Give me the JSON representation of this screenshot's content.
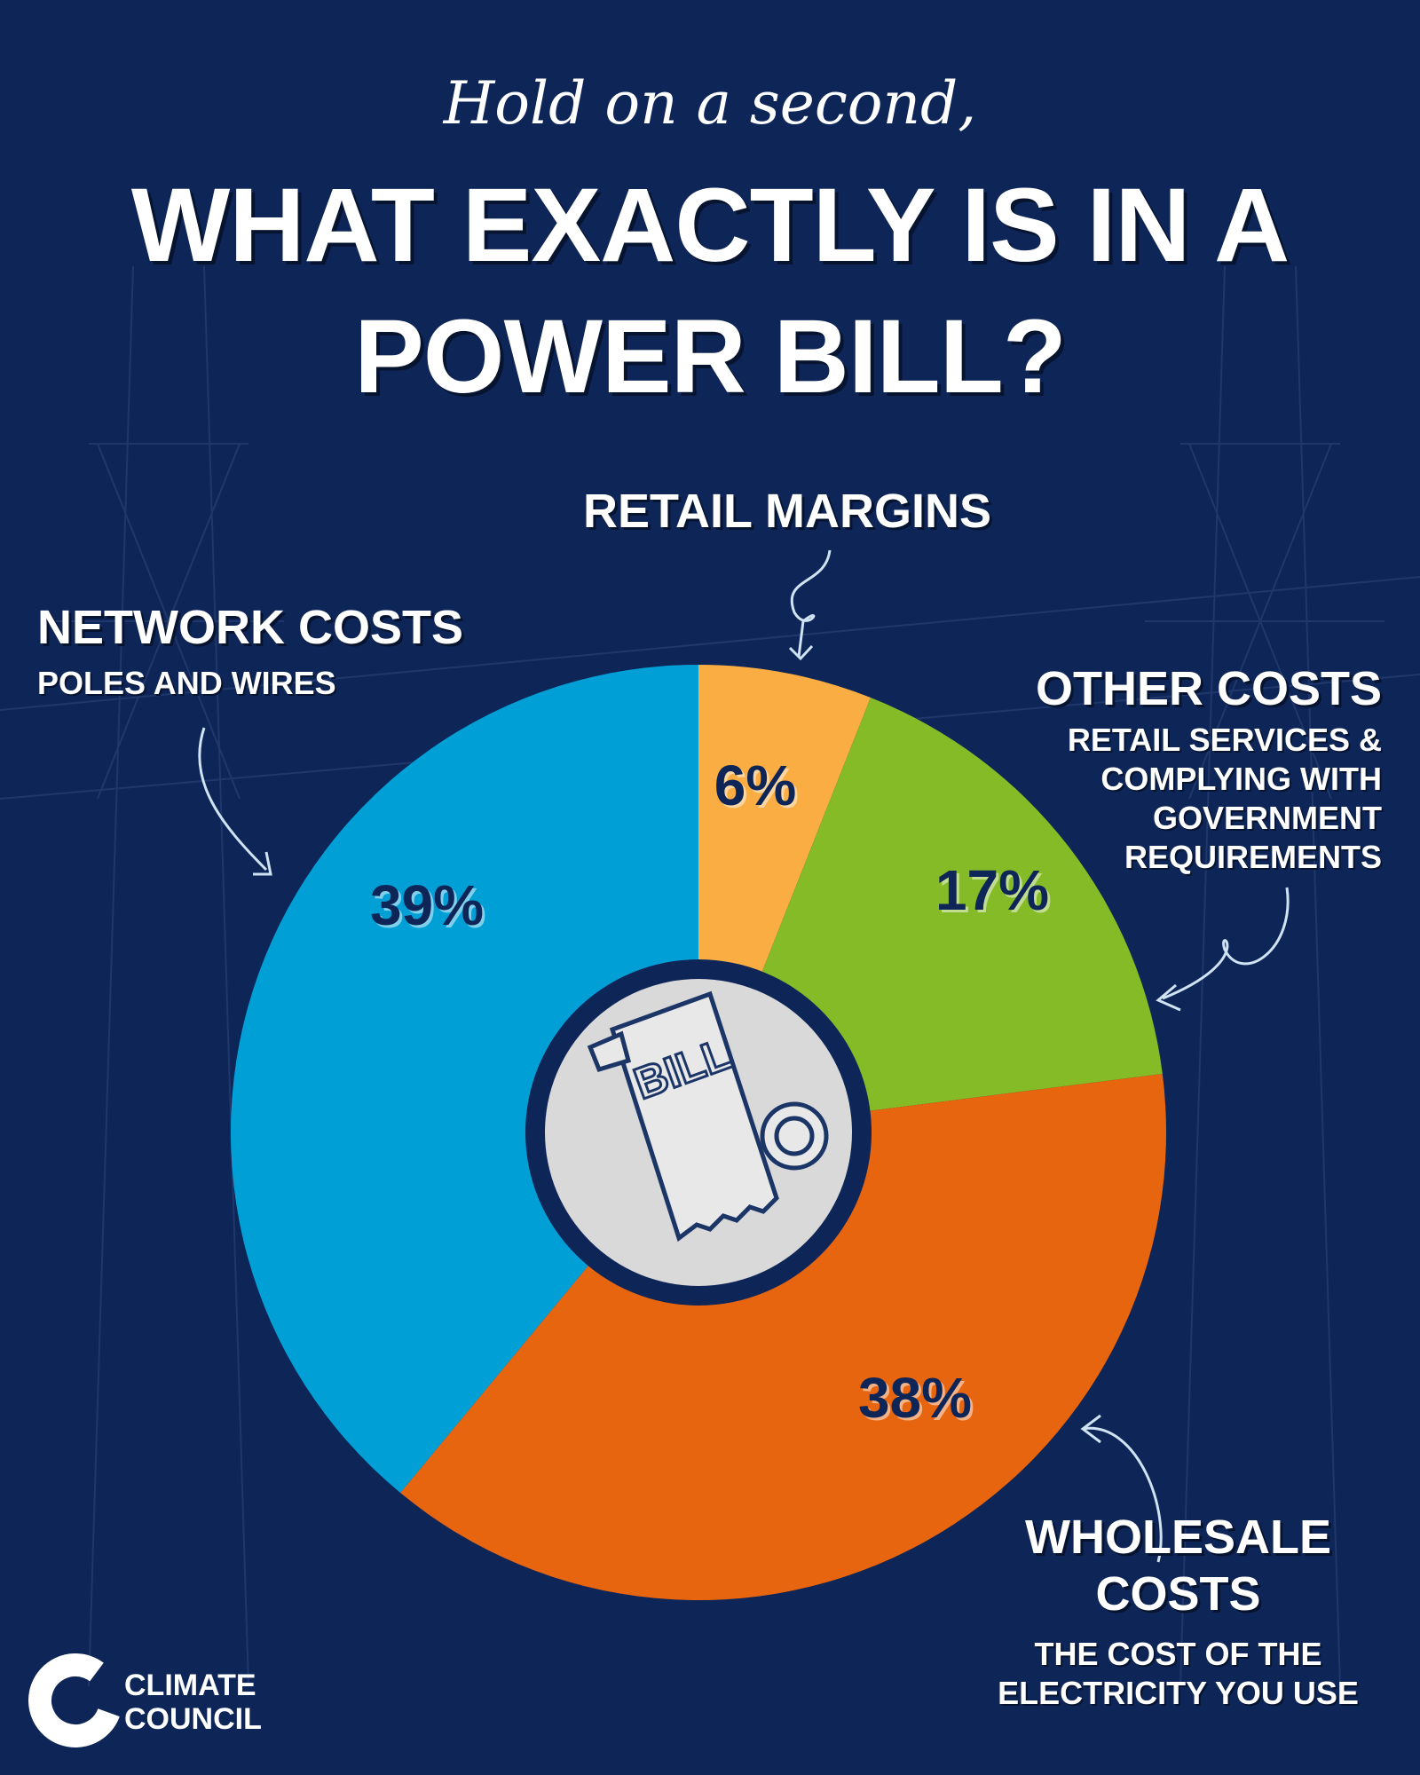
{
  "chart_data": {
    "type": "pie",
    "subtitle": "Hold on a second,",
    "title": "WHAT EXACTLY IS IN A POWER BILL?",
    "categories": [
      "RETAIL MARGINS",
      "OTHER COSTS",
      "WHOLESALE COSTS",
      "NETWORK COSTS"
    ],
    "descriptions": [
      null,
      "RETAIL SERVICES & COMPLYING WITH GOVERNMENT REQUIREMENTS",
      "THE COST OF THE ELECTRICITY YOU USE",
      "POLES AND WIRES"
    ],
    "values": [
      6,
      17,
      38,
      39
    ],
    "value_labels": [
      "6%",
      "17%",
      "38%",
      "39%"
    ],
    "colors": [
      "#f9ad42",
      "#84bb26",
      "#e8650f",
      "#00a0d6"
    ],
    "center_icon_text": "BILL"
  },
  "logo": {
    "text": "CLIMATE COUNCIL"
  }
}
